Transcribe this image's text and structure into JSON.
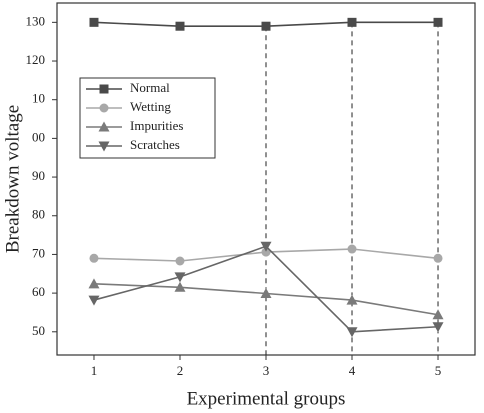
{
  "chart_data": {
    "type": "line",
    "x_label": "Experimental groups",
    "y_label": "Breakdown voltage",
    "x": [
      1,
      2,
      3,
      4,
      5
    ],
    "series": [
      {
        "name": "Normal",
        "color": "#4a4a4a",
        "marker": "square",
        "values": [
          130,
          129,
          129,
          130,
          130
        ]
      },
      {
        "name": "Wetting",
        "color": "#a8a8a8",
        "marker": "circle",
        "values": [
          69,
          68.3,
          70.6,
          71.4,
          69
        ]
      },
      {
        "name": "Impurities",
        "color": "#7a7a7a",
        "marker": "triangle-up",
        "values": [
          62.4,
          61.5,
          59.9,
          58.2,
          54.4
        ]
      },
      {
        "name": "Scratches",
        "color": "#666666",
        "marker": "triangle-down",
        "values": [
          58.2,
          64.2,
          72.1,
          50,
          51.3
        ]
      }
    ],
    "drop_lines": [
      3,
      4,
      5
    ],
    "xlim": [
      0.57,
      5.43
    ],
    "xticks": [
      1,
      2,
      3,
      4,
      5
    ],
    "ylim": [
      44,
      135
    ],
    "yticks": [
      50,
      60,
      70,
      80,
      90,
      {
        "value": 100,
        "label": "00"
      },
      {
        "value": 110,
        "label": "10"
      },
      120,
      130
    ],
    "legend": "upper left",
    "grid": false
  }
}
